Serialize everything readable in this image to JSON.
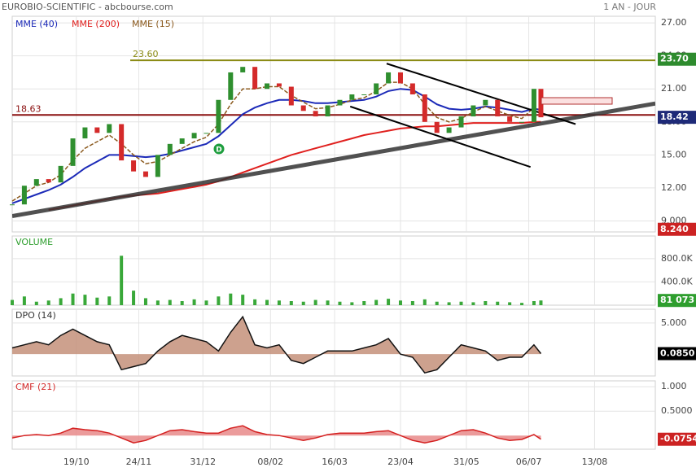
{
  "header": {
    "title": "EUROBIO-SCIENTIFIC - abcbourse.com",
    "period": "1 AN - JOUR"
  },
  "chart_data": [
    {
      "type": "line",
      "x": [
        0,
        7,
        14,
        21,
        28,
        35,
        42,
        49,
        56,
        63,
        70,
        77,
        84,
        91,
        98,
        105,
        112,
        119,
        126,
        133,
        140,
        147,
        154,
        161,
        168,
        175,
        182,
        189,
        196,
        203,
        210,
        217,
        224,
        231,
        238,
        245,
        252,
        259,
        266,
        273,
        280,
        287,
        294,
        301,
        305
      ],
      "values": [
        10.5,
        12.2,
        12.8,
        12.5,
        14.0,
        16.5,
        17.5,
        17.0,
        17.8,
        14.5,
        13.5,
        13.0,
        15.0,
        16.0,
        16.5,
        17.0,
        17.0,
        20.0,
        22.5,
        23.0,
        21.0,
        21.5,
        21.2,
        19.5,
        19.0,
        18.5,
        19.5,
        20.0,
        20.5,
        20.5,
        21.5,
        22.5,
        21.5,
        20.5,
        18.0,
        17.0,
        17.5,
        18.5,
        19.5,
        20.0,
        18.5,
        18.0,
        18.0,
        21.0,
        18.42
      ],
      "color": "#2f8f2f",
      "series": [
        {
          "name": "MME (40)",
          "color": "#1c2ab8",
          "values": [
            10.6,
            11.0,
            11.4,
            11.8,
            12.3,
            13.0,
            13.8,
            14.4,
            15.0,
            15.0,
            14.9,
            14.8,
            14.9,
            15.1,
            15.4,
            15.7,
            16.0,
            16.7,
            17.7,
            18.7,
            19.3,
            19.7,
            20.0,
            20.0,
            19.9,
            19.7,
            19.7,
            19.8,
            19.9,
            20.0,
            20.3,
            20.8,
            21.0,
            20.9,
            20.3,
            19.6,
            19.2,
            19.1,
            19.2,
            19.4,
            19.3,
            19.1,
            18.9,
            19.2,
            19.1
          ]
        },
        {
          "name": "MME (200)",
          "color": "#e0201e",
          "values": [
            null,
            null,
            null,
            10.0,
            10.2,
            10.4,
            10.6,
            10.8,
            11.0,
            11.2,
            11.3,
            11.4,
            11.5,
            11.7,
            11.9,
            12.1,
            12.3,
            12.6,
            13.0,
            13.4,
            13.8,
            14.2,
            14.6,
            15.0,
            15.3,
            15.6,
            15.9,
            16.2,
            16.5,
            16.8,
            17.0,
            17.2,
            17.4,
            17.5,
            17.6,
            17.6,
            17.7,
            17.8,
            17.9,
            17.9,
            17.9,
            17.9,
            17.9,
            18.0,
            18.0
          ]
        },
        {
          "name": "MME (15)",
          "color": "#8b5a1e",
          "values": [
            10.8,
            11.5,
            12.2,
            12.5,
            13.2,
            14.5,
            15.6,
            16.2,
            16.8,
            16.0,
            15.0,
            14.2,
            14.4,
            15.0,
            15.6,
            16.2,
            16.6,
            17.8,
            19.6,
            21.0,
            21.0,
            21.2,
            21.2,
            20.4,
            19.8,
            19.2,
            19.3,
            19.6,
            20.0,
            20.2,
            20.8,
            21.6,
            21.6,
            21.0,
            19.6,
            18.4,
            18.0,
            18.3,
            18.9,
            19.4,
            19.0,
            18.6,
            18.3,
            19.3,
            19.0
          ]
        }
      ],
      "ylim": [
        8.0,
        27.6
      ],
      "yticks": [
        {
          "value": 27,
          "label": "27.00"
        },
        {
          "value": 24,
          "label": "24.00"
        },
        {
          "value": 21,
          "label": "21.00"
        },
        {
          "value": 18,
          "label": "18.00"
        },
        {
          "value": 15,
          "label": "15.00"
        },
        {
          "value": 12,
          "label": "12.00"
        },
        {
          "value": 9,
          "label": "9.000"
        }
      ],
      "hlines": [
        {
          "value": 23.6,
          "label": "23.60",
          "color": "#8a8a12"
        },
        {
          "value": 18.63,
          "label": "18.63",
          "color": "#8b1010"
        }
      ],
      "trendlines": [
        {
          "x": [
            0,
            371
          ],
          "y": [
            9.44,
            19.67
          ],
          "color": "#333333"
        },
        {
          "x": [
            216,
            325
          ],
          "y": [
            23.3,
            17.8
          ],
          "color": "#000000"
        },
        {
          "x": [
            195,
            299
          ],
          "y": [
            19.4,
            13.9
          ],
          "color": "#000000"
        }
      ],
      "tags": [
        {
          "value": 23.7,
          "label": "23.70",
          "color": "#2e8b2e"
        },
        {
          "value": 18.42,
          "label": "18.42",
          "color": "#1e2a78"
        },
        {
          "value": 8.24,
          "label": "8.240",
          "color": "#cc2222"
        }
      ],
      "grid": true
    },
    {
      "type": "bar",
      "title": "VOLUME",
      "title_color": "#2e9e2e",
      "x": [
        0,
        7,
        14,
        21,
        28,
        35,
        42,
        49,
        56,
        63,
        70,
        77,
        84,
        91,
        98,
        105,
        112,
        119,
        126,
        133,
        140,
        147,
        154,
        161,
        168,
        175,
        182,
        189,
        196,
        203,
        210,
        217,
        224,
        231,
        238,
        245,
        252,
        259,
        266,
        273,
        280,
        287,
        294,
        301,
        305
      ],
      "values": [
        90000,
        150000,
        60000,
        80000,
        120000,
        200000,
        180000,
        130000,
        150000,
        850000,
        250000,
        120000,
        80000,
        90000,
        70000,
        100000,
        80000,
        150000,
        200000,
        180000,
        100000,
        90000,
        80000,
        70000,
        60000,
        90000,
        80000,
        60000,
        50000,
        70000,
        90000,
        110000,
        80000,
        70000,
        100000,
        60000,
        50000,
        60000,
        50000,
        70000,
        60000,
        50000,
        40000,
        70000,
        81073
      ],
      "color": "#39a839",
      "ylim": [
        0,
        1190000
      ],
      "yticks": [
        {
          "value": 800000,
          "label": "800.0K"
        },
        {
          "value": 400000,
          "label": "400.0K"
        }
      ],
      "tags": [
        {
          "value": 81073,
          "label": "81 073",
          "color": "#2e9e2e"
        }
      ],
      "grid": true
    },
    {
      "type": "area",
      "title": "DPO (14)",
      "title_color": "#333333",
      "x": [
        0,
        7,
        14,
        21,
        28,
        35,
        42,
        49,
        56,
        63,
        70,
        77,
        84,
        91,
        98,
        105,
        112,
        119,
        126,
        133,
        140,
        147,
        154,
        161,
        168,
        175,
        182,
        189,
        196,
        203,
        210,
        217,
        224,
        231,
        238,
        245,
        252,
        259,
        266,
        273,
        280,
        287,
        294,
        301,
        305
      ],
      "values": [
        1.0,
        1.5,
        2.0,
        1.5,
        3.0,
        4.0,
        3.0,
        2.0,
        1.5,
        -2.5,
        -2.0,
        -1.5,
        0.5,
        2.0,
        3.0,
        2.5,
        2.0,
        0.5,
        3.5,
        6.0,
        1.5,
        1.0,
        1.5,
        -1.0,
        -1.5,
        -0.5,
        0.5,
        0.5,
        0.5,
        1.0,
        1.5,
        2.5,
        0,
        -0.5,
        -3.0,
        -2.5,
        -0.5,
        1.5,
        1.0,
        0.5,
        -1.0,
        -0.5,
        -0.5,
        1.5,
        0.085
      ],
      "color": "#c4917a",
      "line_color": "#111111",
      "ylim": [
        -3.5,
        7.2
      ],
      "yticks": [
        {
          "value": 5,
          "label": "5.000"
        }
      ],
      "tags": [
        {
          "value": 0.085,
          "label": "0.0850",
          "color": "#000000"
        }
      ],
      "grid": true
    },
    {
      "type": "area",
      "title": "CMF (21)",
      "title_color": "#d42a2a",
      "x": [
        0,
        7,
        14,
        21,
        28,
        35,
        42,
        49,
        56,
        63,
        70,
        77,
        84,
        91,
        98,
        105,
        112,
        119,
        126,
        133,
        140,
        147,
        154,
        161,
        168,
        175,
        182,
        189,
        196,
        203,
        210,
        217,
        224,
        231,
        238,
        245,
        252,
        259,
        266,
        273,
        280,
        287,
        294,
        301,
        305
      ],
      "values": [
        -0.05,
        0,
        0.02,
        0,
        0.05,
        0.15,
        0.12,
        0.1,
        0.05,
        -0.05,
        -0.15,
        -0.1,
        0,
        0.1,
        0.12,
        0.08,
        0.05,
        0.05,
        0.15,
        0.2,
        0.08,
        0.02,
        0.0,
        -0.05,
        -0.1,
        -0.05,
        0.02,
        0.05,
        0.05,
        0.05,
        0.08,
        0.1,
        0,
        -0.1,
        -0.15,
        -0.1,
        0,
        0.1,
        0.12,
        0.05,
        -0.05,
        -0.1,
        -0.08,
        0.02,
        -0.0754
      ],
      "color": "#e88a8a",
      "line_color": "#d42020",
      "ylim": [
        -0.28,
        1.12
      ],
      "yticks": [
        {
          "value": 1,
          "label": "1.000"
        },
        {
          "value": 0.5,
          "label": "0.5000"
        }
      ],
      "tags": [
        {
          "value": -0.0754,
          "label": "-0.0754",
          "color": "#cc2222"
        }
      ],
      "xlim": [
        0,
        371
      ],
      "xticks": [
        {
          "value": 37,
          "label": "19/10"
        },
        {
          "value": 73,
          "label": "24/11"
        },
        {
          "value": 110,
          "label": "31/12"
        },
        {
          "value": 149,
          "label": "08/02"
        },
        {
          "value": 186,
          "label": "16/03"
        },
        {
          "value": 224,
          "label": "23/04"
        },
        {
          "value": 262,
          "label": "31/05"
        },
        {
          "value": 298,
          "label": "06/07"
        },
        {
          "value": 336,
          "label": "13/08"
        }
      ],
      "grid": true
    }
  ]
}
